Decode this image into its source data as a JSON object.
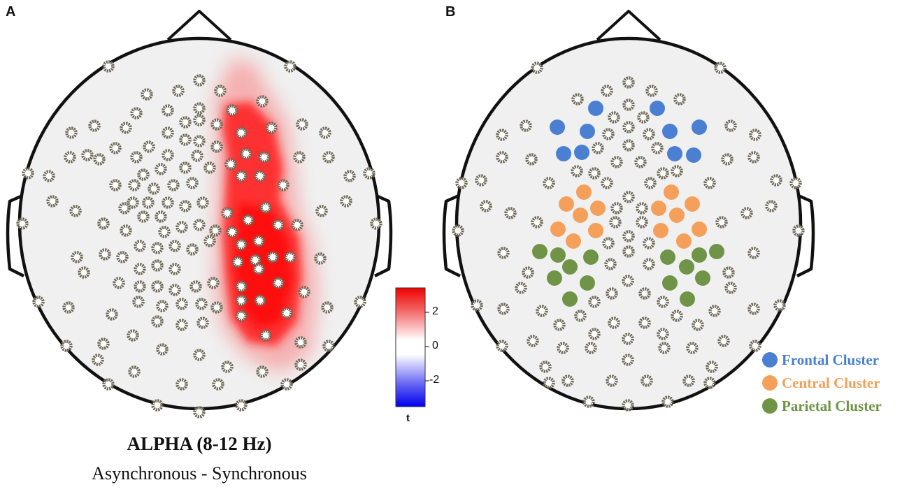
{
  "panels": [
    {
      "letter": "A",
      "title": "ALPHA (8-12 Hz)",
      "subtitle": "Asynchronous - Synchronous"
    },
    {
      "letter": "B"
    }
  ],
  "colorbar": {
    "label": "t",
    "ticks": [
      "2",
      "0",
      "-2"
    ],
    "colors": {
      "max": "#ff0000",
      "mid": "#ffffff",
      "min": "#0000ff"
    }
  },
  "legend": [
    {
      "label": "Frontal Cluster",
      "color": "#4a7fd1"
    },
    {
      "label": "Central Cluster",
      "color": "#f4a05a"
    },
    {
      "label": "Parietal Cluster",
      "color": "#6f9447"
    }
  ],
  "colors": {
    "head_fill": "#f0f0f0",
    "head_outline": "#111111",
    "electrode_ring": "#6e6a58",
    "activation": "#ff0000"
  },
  "icons": [
    "electrode-icon",
    "nose-icon",
    "ear-icon"
  ]
}
